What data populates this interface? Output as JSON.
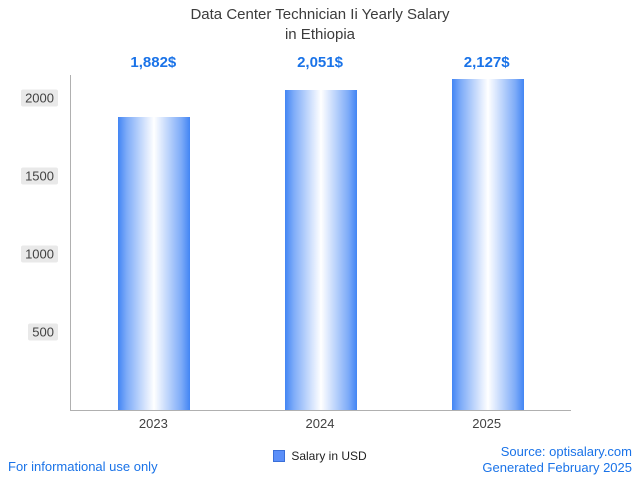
{
  "title": {
    "line1": "Data Center Technician Ii Yearly Salary",
    "line2": "in Ethiopia"
  },
  "chart_data": {
    "type": "bar",
    "title": "Data Center Technician Ii Yearly Salary in Ethiopia",
    "categories": [
      "2023",
      "2024",
      "2025"
    ],
    "values": [
      1882,
      2051,
      2127
    ],
    "value_labels": [
      "1,882$",
      "2,051$",
      "2,127$"
    ],
    "yticks": [
      500,
      1000,
      1500,
      2000
    ],
    "ylim": [
      0,
      2150
    ],
    "grid": false,
    "legend": "Salary in USD",
    "legend_position": "bottom",
    "xlabel": "",
    "ylabel": ""
  },
  "footer": {
    "left": "For informational use only",
    "source": "Source: optisalary.com",
    "generated": "Generated February 2025"
  },
  "colors": {
    "bar_edge": "#4285f4",
    "bar_center": "#ffffff",
    "value_label": "#1a73e8",
    "footer_text": "#1a73e8",
    "title_text": "#3c3c3c",
    "axis_line": "#b0b0b0",
    "tick_label_bg": "#e9e9e9"
  }
}
